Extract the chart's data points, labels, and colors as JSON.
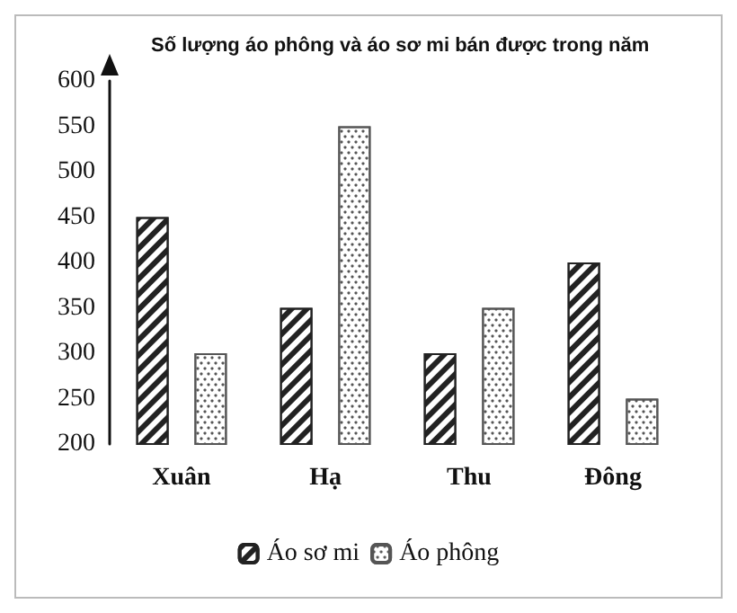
{
  "chart_data": {
    "type": "bar",
    "title": "Số lượng áo phông và áo sơ mi bán được trong năm",
    "categories": [
      "Xuân",
      "Hạ",
      "Thu",
      "Đông"
    ],
    "series": [
      {
        "name": "Áo sơ mi",
        "color": "#222222",
        "values": [
          450,
          350,
          300,
          400
        ]
      },
      {
        "name": "Áo phông",
        "color": "#555555",
        "values": [
          300,
          550,
          350,
          250
        ]
      }
    ],
    "ylim": [
      200,
      600
    ],
    "yticks": [
      200,
      250,
      300,
      350,
      400,
      450,
      500,
      550,
      600
    ],
    "grid": false,
    "legend": "bottom"
  }
}
